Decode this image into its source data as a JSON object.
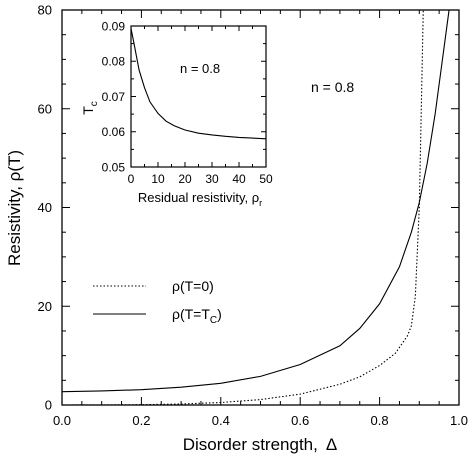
{
  "chart_data": [
    {
      "type": "line",
      "xlabel_main": "Disorder strength,",
      "xlabel_symbol": "Δ",
      "ylabel": "Resistivity, ρ(T)",
      "xlim": [
        0,
        1
      ],
      "ylim": [
        0,
        80
      ],
      "x_ticks": [
        0,
        0.2,
        0.4,
        0.6,
        0.8,
        1
      ],
      "x_tick_labels": [
        "0.0",
        "0.2",
        "0.4",
        "0.6",
        "0.8",
        "1.0"
      ],
      "y_ticks": [
        0,
        20,
        40,
        60,
        80
      ],
      "y_tick_labels": [
        "0",
        "20",
        "40",
        "60",
        "80"
      ],
      "annotation": "n = 0.8",
      "grid": false,
      "legend_position": "left-middle",
      "series": [
        {
          "name": "ρ(T=0)",
          "style": "dotted",
          "color": "#000000",
          "points": [
            [
              0,
              0
            ],
            [
              0.1,
              0.01
            ],
            [
              0.2,
              0.06
            ],
            [
              0.3,
              0.2
            ],
            [
              0.4,
              0.5
            ],
            [
              0.5,
              1.1
            ],
            [
              0.6,
              2.2
            ],
            [
              0.7,
              4.2
            ],
            [
              0.75,
              5.7
            ],
            [
              0.8,
              8.0
            ],
            [
              0.84,
              10.5
            ],
            [
              0.87,
              14.0
            ],
            [
              0.88,
              16.0
            ],
            [
              0.89,
              22.0
            ],
            [
              0.9,
              40.0
            ],
            [
              0.905,
              60.0
            ],
            [
              0.91,
              80.0
            ]
          ]
        },
        {
          "name": "ρ(T=T",
          "name_sub": "C",
          "name_end": ")",
          "style": "solid",
          "color": "#000000",
          "points": [
            [
              0,
              2.7
            ],
            [
              0.1,
              2.85
            ],
            [
              0.2,
              3.1
            ],
            [
              0.3,
              3.6
            ],
            [
              0.4,
              4.4
            ],
            [
              0.5,
              5.8
            ],
            [
              0.6,
              8.2
            ],
            [
              0.7,
              12.0
            ],
            [
              0.75,
              15.5
            ],
            [
              0.8,
              20.5
            ],
            [
              0.85,
              28.0
            ],
            [
              0.88,
              35.0
            ],
            [
              0.9,
              41.0
            ],
            [
              0.92,
              49.0
            ],
            [
              0.94,
              59.0
            ],
            [
              0.96,
              71.0
            ],
            [
              0.975,
              80.0
            ]
          ]
        }
      ]
    },
    {
      "type": "line",
      "xlabel_main": "Residual resistivity,  ρ",
      "xlabel_sub": "r",
      "ylabel_main": "T",
      "ylabel_sub": "c",
      "xlim": [
        0,
        50
      ],
      "ylim": [
        0.05,
        0.09
      ],
      "x_ticks": [
        0,
        10,
        20,
        30,
        40,
        50
      ],
      "x_tick_labels": [
        "0",
        "10",
        "20",
        "30",
        "40",
        "50"
      ],
      "y_ticks": [
        0.05,
        0.06,
        0.07,
        0.08,
        0.09
      ],
      "y_tick_labels": [
        "0.05",
        "0.06",
        "0.07",
        "0.08",
        "0.09"
      ],
      "annotation": "n = 0.8",
      "grid": false,
      "series": [
        {
          "style": "solid",
          "color": "#000000",
          "points": [
            [
              0,
              0.0893
            ],
            [
              1,
              0.0855
            ],
            [
              2,
              0.0815
            ],
            [
              3,
              0.0775
            ],
            [
              5,
              0.0725
            ],
            [
              7,
              0.0685
            ],
            [
              10,
              0.0652
            ],
            [
              13,
              0.063
            ],
            [
              16,
              0.0617
            ],
            [
              20,
              0.0605
            ],
            [
              25,
              0.0596
            ],
            [
              30,
              0.0591
            ],
            [
              35,
              0.0587
            ],
            [
              40,
              0.0584
            ],
            [
              45,
              0.0582
            ],
            [
              50,
              0.058
            ]
          ]
        }
      ]
    }
  ]
}
